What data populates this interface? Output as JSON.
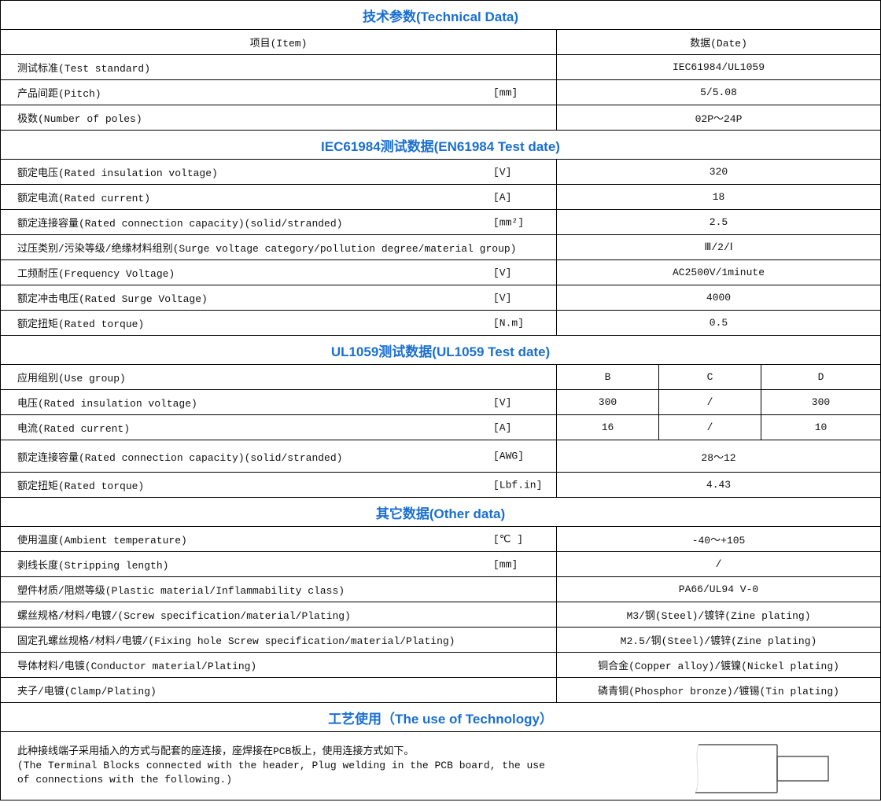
{
  "title": "技术参数(Technical Data)",
  "header": {
    "item": "项目(Item)",
    "data": "数据(Date)"
  },
  "general": [
    {
      "item": "测试标准(Test standard)",
      "unit": "",
      "value": "IEC61984/UL1059"
    },
    {
      "item": "产品间距(Pitch)",
      "unit": "[mm]",
      "value": "5/5.08"
    },
    {
      "item": "极数(Number of poles)",
      "unit": "",
      "value": "02P～24P"
    }
  ],
  "iec_title": "IEC61984测试数据(EN61984 Test date)",
  "iec": [
    {
      "item": "额定电压(Rated insulation voltage)",
      "unit": "[V]",
      "value": "320"
    },
    {
      "item": "额定电流(Rated current)",
      "unit": "[A]",
      "value": "18"
    },
    {
      "item": "额定连接容量(Rated connection capacity)(solid/stranded)",
      "unit": "[mm²]",
      "value": "2.5"
    },
    {
      "item": "过压类别/污染等级/绝缘材料组别(Surge voltage category/pollution degree/material group)",
      "unit": "",
      "value": "Ⅲ/2/Ⅰ"
    },
    {
      "item": "工频耐压(Frequency Voltage)",
      "unit": "[V]",
      "value": "AC2500V/1minute"
    },
    {
      "item": "额定冲击电压(Rated Surge Voltage)",
      "unit": "[V]",
      "value": "4000"
    },
    {
      "item": "额定扭矩(Rated torque)",
      "unit": "[N.m]",
      "value": "0.5"
    }
  ],
  "ul_title": "UL1059测试数据(UL1059 Test date)",
  "ul_group": {
    "item": "应用组别(Use group)",
    "values": [
      "B",
      "C",
      "D"
    ]
  },
  "ul_split": [
    {
      "item": "电压(Rated insulation voltage)",
      "unit": "[V]",
      "values": [
        "300",
        "/",
        "300"
      ]
    },
    {
      "item": "电流(Rated current)",
      "unit": "[A]",
      "values": [
        "16",
        "/",
        "10"
      ]
    }
  ],
  "ul": [
    {
      "item": "额定连接容量(Rated connection capacity)(solid/stranded)",
      "unit": "[AWG]",
      "value": "28～12"
    },
    {
      "item": "额定扭矩(Rated torque)",
      "unit": "[Lbf.in]",
      "value": "4.43"
    }
  ],
  "other_title": "其它数据(Other data)",
  "other": [
    {
      "item": "使用温度(Ambient temperature)",
      "unit": "[℃ ]",
      "value": "-40～+105"
    },
    {
      "item": "剥线长度(Stripping length)",
      "unit": "[mm]",
      "value": "/"
    },
    {
      "item": "塑件材质/阻燃等级(Plastic material/Inflammability class)",
      "unit": "",
      "value": "PA66/UL94 V-0"
    },
    {
      "item": "螺丝规格/材料/电镀/(Screw specification/material/Plating)",
      "unit": "",
      "value": "M3/钢(Steel)/镀锌(Zine plating)"
    },
    {
      "item": "固定孔螺丝规格/材料/电镀/(Fixing hole Screw specification/material/Plating)",
      "unit": "",
      "value": "M2.5/钢(Steel)/镀锌(Zine plating)"
    },
    {
      "item": "导体材料/电镀(Conductor material/Plating)",
      "unit": "",
      "value": "铜合金(Copper alloy)/镀镍(Nickel plating)"
    },
    {
      "item": "夹子/电镀(Clamp/Plating)",
      "unit": "",
      "value": "磷青铜(Phosphor bronze)/镀锡(Tin plating)"
    }
  ],
  "use_title": "工艺使用（The use of Technology）",
  "use_text": [
    "此种接线端子采用插入的方式与配套的座连接，座焊接在PCB板上，使用连接方式如下。",
    "(The Terminal Blocks connected with the header, Plug welding in the PCB board, the use",
    "of connections with the following.)"
  ],
  "colors": {
    "heading": "#1a6fd0",
    "border": "#000000"
  }
}
